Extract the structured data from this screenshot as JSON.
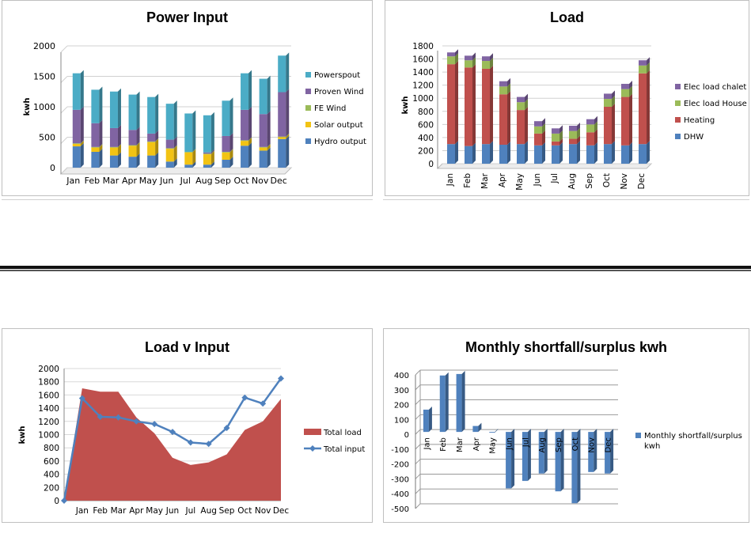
{
  "charts": {
    "power": {
      "title": "Power Input",
      "ylabel": "kwh",
      "ylim": [
        0,
        2000
      ],
      "yticks": [
        "0",
        "500",
        "1000",
        "1500",
        "2000"
      ],
      "categories": [
        "Jan",
        "Feb",
        "Mar",
        "Apr",
        "May",
        "Jun",
        "Jul",
        "Aug",
        "Sep",
        "Oct",
        "Nov",
        "Dec"
      ],
      "legend": [
        "Powerspout",
        "Proven Wind",
        "FE Wind",
        "Solar output",
        "Hydro output"
      ],
      "colors": {
        "Hydro output": "#4f81bd",
        "Solar output": "#f2c314",
        "FE Wind": "#9bbb59",
        "Proven Wind": "#8064a2",
        "Powerspout": "#4bacc6"
      }
    },
    "load": {
      "title": "Load",
      "ylabel": "kwh",
      "ylim": [
        0,
        1800
      ],
      "yticks": [
        "0",
        "200",
        "400",
        "600",
        "800",
        "1000",
        "1200",
        "1400",
        "1600",
        "1800"
      ],
      "categories": [
        "Jan",
        "Feb",
        "Mar",
        "Apr",
        "May",
        "Jun",
        "Jul",
        "Aug",
        "Sep",
        "Oct",
        "Nov",
        "Dec"
      ],
      "legend": [
        "Elec load chalet",
        "Elec load House",
        "Heating",
        "DHW"
      ],
      "colors": {
        "DHW": "#4f81bd",
        "Heating": "#c0504d",
        "Elec load House": "#9bbb59",
        "Elec load chalet": "#8064a2"
      }
    },
    "lvi": {
      "title": "Load v Input",
      "ylabel": "kwh",
      "ylim": [
        0,
        2000
      ],
      "yticks": [
        "0",
        "200",
        "400",
        "600",
        "800",
        "1000",
        "1200",
        "1400",
        "1600",
        "1800",
        "2000"
      ],
      "categories": [
        "Jan",
        "Feb",
        "Mar",
        "Apr",
        "May",
        "Jun",
        "Jul",
        "Aug",
        "Sep",
        "Oct",
        "Nov",
        "Dec"
      ],
      "legend": [
        "Total load",
        "Total input"
      ],
      "colors": {
        "Total load": "#c0504d",
        "Total input": "#4f81bd"
      }
    },
    "short": {
      "title": "Monthly shortfall/surplus kwh",
      "ylim": [
        -500,
        400
      ],
      "yticks": [
        "400",
        "300",
        "200",
        "100",
        "0",
        "-100",
        "-200",
        "-300",
        "-400",
        "-500"
      ],
      "categories": [
        "Jan",
        "Feb",
        "Mar",
        "Apr",
        "May",
        "Jun",
        "Jul",
        "Aug",
        "Sep",
        "Oct",
        "Nov",
        "Dec"
      ],
      "legend_line1": "Monthly shortfall/surplus",
      "legend_line2": "kwh",
      "colors": {
        "bar": "#4f81bd"
      }
    }
  },
  "chart_data": [
    {
      "type": "bar",
      "title": "Power Input",
      "ylabel": "kwh",
      "ylim": [
        0,
        2000
      ],
      "categories": [
        "Jan",
        "Feb",
        "Mar",
        "Apr",
        "May",
        "Jun",
        "Jul",
        "Aug",
        "Sep",
        "Oct",
        "Nov",
        "Dec"
      ],
      "series": [
        {
          "name": "Hydro output",
          "values": [
            350,
            260,
            200,
            180,
            200,
            100,
            50,
            50,
            130,
            360,
            280,
            470
          ]
        },
        {
          "name": "Solar output",
          "values": [
            40,
            70,
            130,
            180,
            220,
            210,
            200,
            170,
            120,
            80,
            50,
            30
          ]
        },
        {
          "name": "FE Wind",
          "values": [
            10,
            10,
            10,
            10,
            10,
            10,
            10,
            10,
            10,
            10,
            10,
            10
          ]
        },
        {
          "name": "Proven Wind",
          "values": [
            550,
            390,
            310,
            250,
            130,
            140,
            0,
            20,
            260,
            500,
            540,
            730
          ]
        },
        {
          "name": "Powerspout",
          "values": [
            600,
            550,
            600,
            580,
            600,
            590,
            630,
            610,
            580,
            600,
            580,
            600
          ]
        }
      ]
    },
    {
      "type": "bar",
      "title": "Load",
      "ylabel": "kwh",
      "ylim": [
        0,
        1800
      ],
      "categories": [
        "Jan",
        "Feb",
        "Mar",
        "Apr",
        "May",
        "Jun",
        "Jul",
        "Aug",
        "Sep",
        "Oct",
        "Nov",
        "Dec"
      ],
      "series": [
        {
          "name": "DHW",
          "values": [
            300,
            270,
            300,
            290,
            300,
            280,
            280,
            300,
            280,
            300,
            280,
            300
          ]
        },
        {
          "name": "Heating",
          "values": [
            1220,
            1200,
            1150,
            770,
            520,
            180,
            60,
            80,
            200,
            570,
            740,
            1080
          ]
        },
        {
          "name": "Elec load House",
          "values": [
            120,
            110,
            120,
            120,
            120,
            110,
            120,
            120,
            120,
            120,
            120,
            120
          ]
        },
        {
          "name": "Elec load chalet",
          "values": [
            60,
            70,
            70,
            80,
            80,
            80,
            80,
            80,
            80,
            80,
            80,
            80
          ]
        }
      ]
    },
    {
      "type": "area",
      "title": "Load v Input",
      "ylabel": "kwh",
      "ylim": [
        0,
        2000
      ],
      "categories": [
        "Jan",
        "Feb",
        "Mar",
        "Apr",
        "May",
        "Jun",
        "Jul",
        "Aug",
        "Sep",
        "Oct",
        "Nov",
        "Dec"
      ],
      "series": [
        {
          "name": "Total load",
          "x": [
            0,
            1,
            2,
            3,
            4,
            5,
            6,
            7,
            8,
            9,
            10,
            11,
            12
          ],
          "values": [
            0,
            1700,
            1650,
            1650,
            1260,
            1020,
            650,
            540,
            580,
            700,
            1070,
            1200,
            1540
          ]
        },
        {
          "name": "Total input",
          "x": [
            0,
            1,
            2,
            3,
            4,
            5,
            6,
            7,
            8,
            9,
            10,
            11,
            12
          ],
          "values": [
            0,
            1550,
            1270,
            1260,
            1200,
            1160,
            1040,
            880,
            860,
            1100,
            1560,
            1470,
            1850
          ]
        }
      ]
    },
    {
      "type": "bar",
      "title": "Monthly shortfall/surplus kwh",
      "ylim": [
        -500,
        400
      ],
      "categories": [
        "Jan",
        "Feb",
        "Mar",
        "Apr",
        "May",
        "Jun",
        "Jul",
        "Aug",
        "Sep",
        "Oct",
        "Nov",
        "Dec"
      ],
      "series": [
        {
          "name": "Monthly shortfall/surplus kwh",
          "values": [
            150,
            380,
            390,
            40,
            -5,
            -380,
            -330,
            -280,
            -400,
            -480,
            -270,
            -280
          ]
        }
      ]
    }
  ]
}
